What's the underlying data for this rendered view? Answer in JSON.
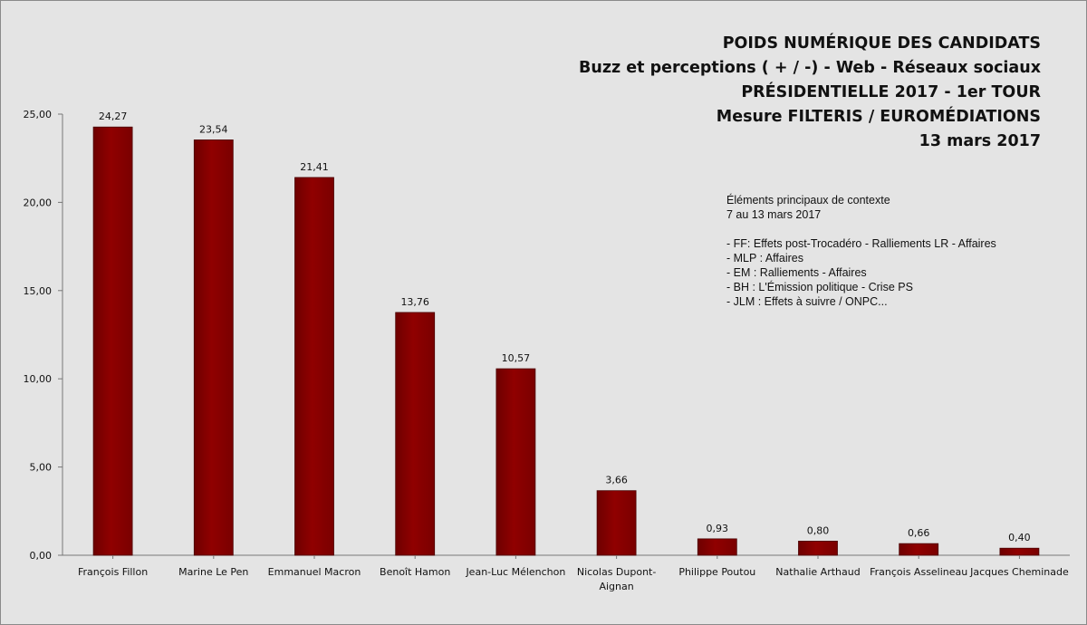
{
  "chart_data": {
    "type": "bar",
    "title_lines": [
      "POIDS NUMÉRIQUE DES CANDIDATS",
      "Buzz et perceptions ( + / -) - Web - Réseaux sociaux",
      "PRÉSIDENTIELLE 2017 - 1er TOUR",
      "Mesure FILTERIS / EUROMÉDIATIONS",
      "13 mars 2017"
    ],
    "categories": [
      [
        "François Fillon"
      ],
      [
        "Marine Le Pen"
      ],
      [
        "Emmanuel Macron"
      ],
      [
        "Benoît Hamon"
      ],
      [
        "Jean-Luc Mélenchon"
      ],
      [
        "Nicolas Dupont-",
        "Aignan"
      ],
      [
        "Philippe Poutou"
      ],
      [
        "Nathalie Arthaud"
      ],
      [
        "François Asselineau"
      ],
      [
        "Jacques Cheminade"
      ]
    ],
    "values": [
      24.27,
      23.54,
      21.41,
      13.76,
      10.57,
      3.66,
      0.93,
      0.8,
      0.66,
      0.4
    ],
    "value_labels": [
      "24,27",
      "23,54",
      "21,41",
      "13,76",
      "10,57",
      "3,66",
      "0,93",
      "0,80",
      "0,66",
      "0,40"
    ],
    "ylim": [
      0,
      25
    ],
    "yticks": [
      0,
      5,
      10,
      15,
      20,
      25
    ],
    "ytick_labels": [
      "0,00",
      "5,00",
      "10,00",
      "15,00",
      "20,00",
      "25,00"
    ],
    "xlabel": "",
    "ylabel": "",
    "grid": false,
    "legend": "none",
    "bar_color": "#8b0000",
    "background_color": "#e4e4e4"
  },
  "context": {
    "title": "Éléments principaux de contexte",
    "subtitle": "7 au 13 mars 2017",
    "items": [
      "- FF: Effets post-Trocadéro - Ralliements LR - Affaires",
      "- MLP : Affaires",
      "- EM : Ralliements - Affaires",
      "- BH : L'Émission politique - Crise PS",
      "- JLM : Effets à suivre / ONPC..."
    ]
  }
}
